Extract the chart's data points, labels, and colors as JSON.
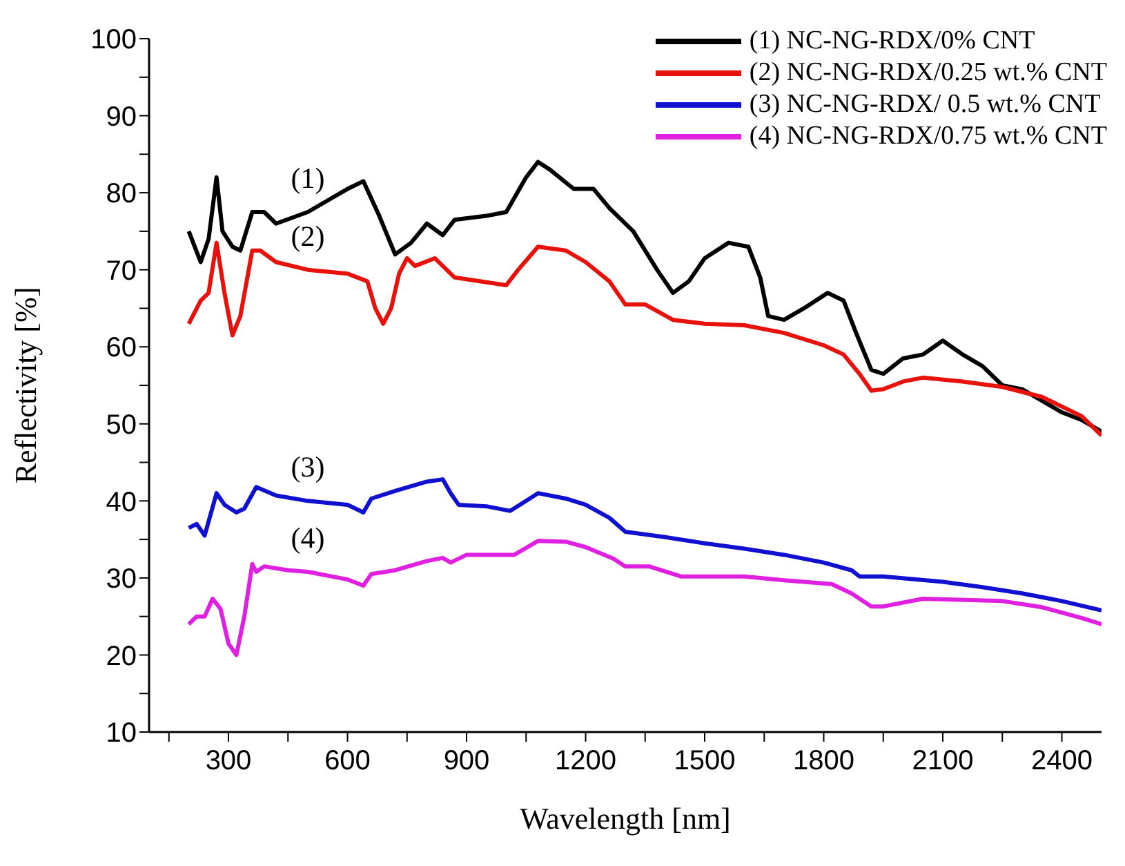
{
  "chart_data": {
    "type": "line",
    "xlabel": "Wavelength [nm]",
    "ylabel": "Reflectivity [%]",
    "xlim": [
      100,
      2500
    ],
    "ylim": [
      10,
      100
    ],
    "xticks": [
      {
        "value": 150,
        "label": null
      },
      300,
      {
        "value": 450,
        "label": null
      },
      600,
      {
        "value": 750,
        "label": null
      },
      900,
      {
        "value": 1050,
        "label": null
      },
      1200,
      {
        "value": 1350,
        "label": null
      },
      1500,
      {
        "value": 1650,
        "label": null
      },
      1800,
      {
        "value": 1950,
        "label": null
      },
      2100,
      {
        "value": 2250,
        "label": null
      },
      2400
    ],
    "yticks": [
      10,
      {
        "value": 15,
        "label": null
      },
      20,
      {
        "value": 25,
        "label": null
      },
      30,
      {
        "value": 35,
        "label": null
      },
      40,
      {
        "value": 45,
        "label": null
      },
      50,
      {
        "value": 55,
        "label": null
      },
      60,
      {
        "value": 65,
        "label": null
      },
      70,
      {
        "value": 75,
        "label": null
      },
      80,
      {
        "value": 85,
        "label": null
      },
      90,
      {
        "value": 95,
        "label": null
      },
      100
    ],
    "grid": false,
    "legend": "top right",
    "marker": "none",
    "line_style": "solid",
    "series": [
      {
        "name": "(1) NC-NG-RDX/0% CNT",
        "color": "#000000",
        "x": [
          200,
          230,
          250,
          270,
          285,
          310,
          330,
          360,
          390,
          420,
          500,
          550,
          600,
          640,
          680,
          720,
          760,
          800,
          840,
          870,
          950,
          1000,
          1050,
          1080,
          1110,
          1170,
          1220,
          1260,
          1320,
          1380,
          1420,
          1460,
          1500,
          1560,
          1610,
          1640,
          1660,
          1700,
          1750,
          1810,
          1850,
          1880,
          1920,
          1950,
          2000,
          2050,
          2100,
          2150,
          2200,
          2250,
          2300,
          2350,
          2400,
          2450,
          2500
        ],
        "values": [
          75,
          71,
          74,
          82,
          75,
          73,
          72.5,
          77.5,
          77.5,
          76,
          77.5,
          79,
          80.5,
          81.5,
          77,
          72,
          73.5,
          76,
          74.5,
          76.5,
          77,
          77.5,
          82,
          84,
          83,
          80.5,
          80.5,
          78,
          75,
          70,
          67,
          68.5,
          71.5,
          73.5,
          73,
          69,
          64,
          63.5,
          65,
          67,
          66,
          62,
          57,
          56.5,
          58.5,
          59,
          60.8,
          59,
          57.5,
          55,
          54.5,
          53,
          51.5,
          50.5,
          49
        ]
      },
      {
        "name": "(2) NC-NG-RDX/0.25 wt.% CNT",
        "color": "#e8120c",
        "x": [
          200,
          230,
          250,
          270,
          290,
          310,
          330,
          360,
          380,
          420,
          500,
          600,
          650,
          670,
          690,
          710,
          730,
          750,
          770,
          820,
          870,
          1000,
          1030,
          1080,
          1150,
          1200,
          1260,
          1300,
          1350,
          1420,
          1500,
          1600,
          1700,
          1800,
          1850,
          1890,
          1920,
          1950,
          2000,
          2050,
          2150,
          2250,
          2350,
          2450,
          2500
        ],
        "values": [
          63,
          66,
          67,
          73.5,
          67,
          61.5,
          64,
          72.5,
          72.5,
          71,
          70,
          69.5,
          68.5,
          65,
          63,
          65,
          69.5,
          71.5,
          70.5,
          71.5,
          69,
          68,
          70,
          73,
          72.5,
          71,
          68.5,
          65.5,
          65.5,
          63.5,
          63,
          62.8,
          61.8,
          60.2,
          59,
          56.5,
          54.3,
          54.5,
          55.5,
          56,
          55.5,
          54.8,
          53.5,
          51,
          48.5
        ]
      },
      {
        "name": "(3) NC-NG-RDX/ 0.5 wt.% CNT",
        "color": "#1010d0",
        "x": [
          200,
          220,
          240,
          270,
          290,
          320,
          340,
          370,
          420,
          500,
          600,
          640,
          660,
          720,
          800,
          840,
          860,
          880,
          950,
          1010,
          1050,
          1080,
          1150,
          1200,
          1260,
          1300,
          1400,
          1500,
          1600,
          1700,
          1800,
          1870,
          1890,
          1950,
          2100,
          2200,
          2300,
          2400,
          2500
        ],
        "values": [
          36.5,
          37,
          35.5,
          41,
          39.5,
          38.5,
          39,
          41.8,
          40.7,
          40,
          39.5,
          38.5,
          40.3,
          41.3,
          42.5,
          42.8,
          41,
          39.5,
          39.3,
          38.7,
          40,
          41,
          40.3,
          39.5,
          37.8,
          36,
          35.3,
          34.5,
          33.8,
          33,
          32,
          31,
          30.2,
          30.2,
          29.5,
          28.8,
          28,
          27,
          25.8
        ]
      },
      {
        "name": "(4) NC-NG-RDX/0.75 wt.% CNT",
        "color": "#e020e0",
        "x": [
          200,
          220,
          240,
          260,
          280,
          300,
          320,
          340,
          360,
          370,
          390,
          450,
          500,
          600,
          640,
          660,
          720,
          800,
          840,
          860,
          900,
          1000,
          1020,
          1080,
          1150,
          1200,
          1270,
          1300,
          1360,
          1440,
          1600,
          1700,
          1820,
          1870,
          1920,
          1950,
          2050,
          2250,
          2350,
          2450,
          2500
        ],
        "values": [
          24,
          25,
          25,
          27.3,
          26,
          21.5,
          20,
          25,
          31.8,
          30.8,
          31.5,
          31,
          30.8,
          29.8,
          29,
          30.5,
          31,
          32.2,
          32.6,
          32,
          33,
          33,
          33,
          34.8,
          34.7,
          34,
          32.5,
          31.5,
          31.5,
          30.2,
          30.2,
          29.7,
          29.2,
          28,
          26.3,
          26.3,
          27.3,
          27,
          26.2,
          24.8,
          24
        ]
      }
    ],
    "annotations": [
      "(1)",
      "(2)",
      "(3)",
      "(4)"
    ]
  }
}
